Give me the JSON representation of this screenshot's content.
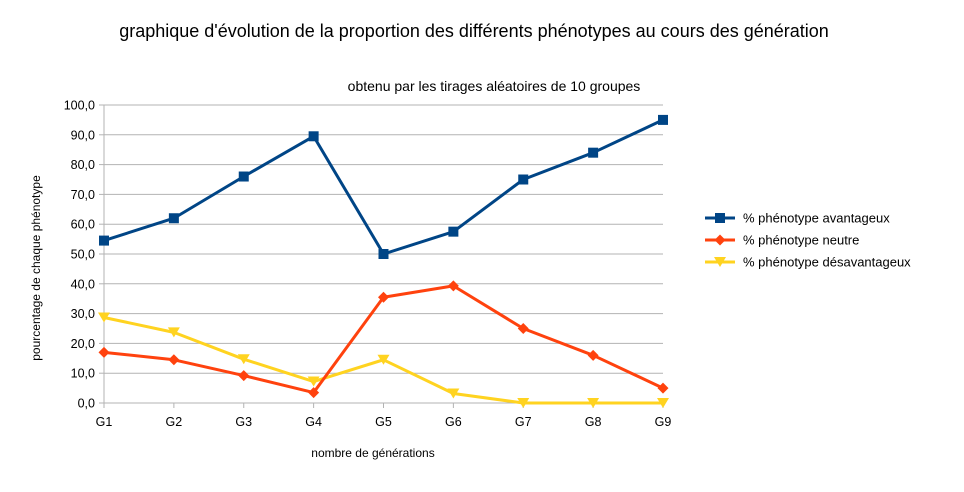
{
  "chart_data": {
    "type": "line",
    "title": "graphique d'évolution de la proportion des différents phénotypes au cours des génération",
    "subtitle": "obtenu par les tirages aléatoires de 10 groupes",
    "xlabel": "nombre de générations",
    "ylabel": "pourcentage de chaque phénotype",
    "categories": [
      "G1",
      "G2",
      "G3",
      "G4",
      "G5",
      "G6",
      "G7",
      "G8",
      "G9"
    ],
    "ylim": [
      0,
      100
    ],
    "yticks": [
      "0,0",
      "10,0",
      "20,0",
      "30,0",
      "40,0",
      "50,0",
      "60,0",
      "70,0",
      "80,0",
      "90,0",
      "100,0"
    ],
    "grid": true,
    "legend_position": "right",
    "series": [
      {
        "name": "% phénotype avantageux",
        "color": "#004586",
        "marker": "square",
        "values": [
          54.5,
          62,
          76,
          89.5,
          50,
          57.5,
          75,
          84,
          95
        ]
      },
      {
        "name": "% phénotype neutre",
        "color": "#ff420e",
        "marker": "diamond",
        "values": [
          17,
          14.5,
          9.2,
          3.5,
          35.5,
          39.3,
          25,
          16,
          5
        ]
      },
      {
        "name": "% phénotype désavantageux",
        "color": "#ffd320",
        "marker": "triangle-down",
        "values": [
          28.7,
          23.7,
          14.7,
          7.2,
          14.5,
          3.2,
          0,
          0,
          0
        ]
      }
    ]
  }
}
